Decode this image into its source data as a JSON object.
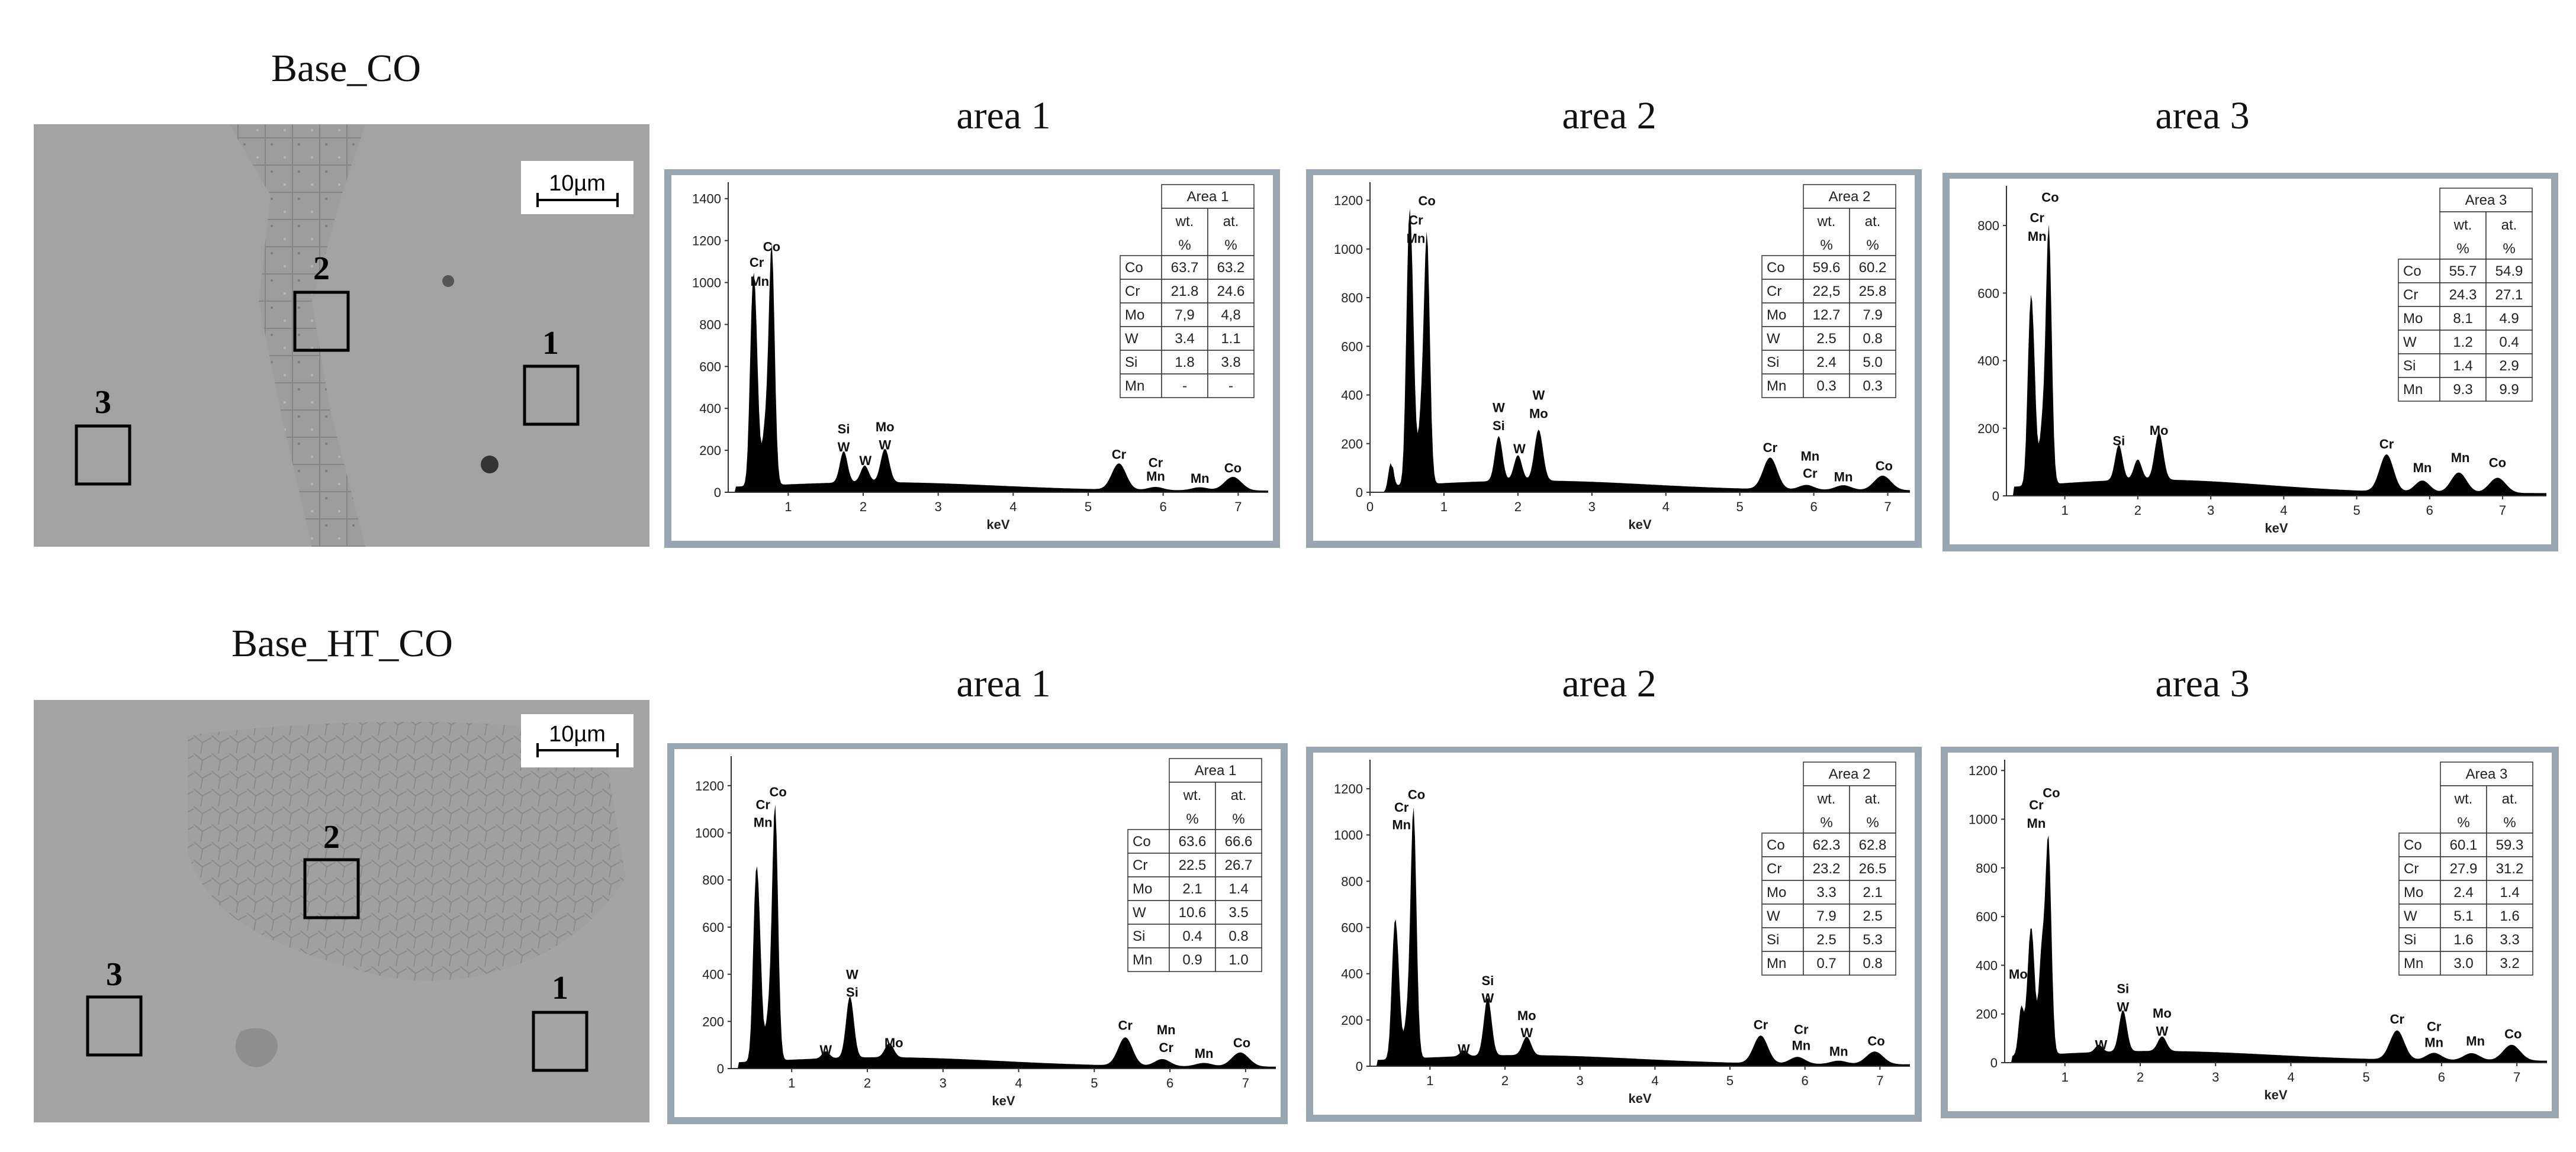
{
  "rows": [
    {
      "title": "Base_CO",
      "sem": {
        "scale_bar": "10µm",
        "markers": [
          "2",
          "1",
          "3"
        ]
      },
      "area_titles": [
        "area 1",
        "area 2",
        "area 3"
      ]
    },
    {
      "title": "Base_HT_CO",
      "sem": {
        "scale_bar": "10µm",
        "markers": [
          "2",
          "3",
          "1"
        ]
      },
      "area_titles": [
        "area 1",
        "area 2",
        "area 3"
      ]
    }
  ],
  "chart_data": [
    {
      "type": "area",
      "row": "Base_CO",
      "panel": "area 1",
      "xlabel": "keV",
      "xlim": [
        0.2,
        7.4
      ],
      "ylim": [
        0,
        1450
      ],
      "xticks": [
        "1",
        "2",
        "3",
        "4",
        "5",
        "6",
        "7"
      ],
      "yticks": [
        "0",
        "200",
        "400",
        "600",
        "800",
        "1000",
        "1200",
        "1400"
      ],
      "peaks": [
        {
          "e": 0.52,
          "c": 720
        },
        {
          "e": 0.57,
          "c": 560
        },
        {
          "e": 0.69,
          "c": 250
        },
        {
          "e": 0.78,
          "c": 1140
        },
        {
          "e": 1.74,
          "c": 150
        },
        {
          "e": 2.02,
          "c": 80
        },
        {
          "e": 2.29,
          "c": 160
        },
        {
          "e": 5.41,
          "c": 125
        },
        {
          "e": 5.9,
          "c": 15
        },
        {
          "e": 6.49,
          "c": 15
        },
        {
          "e": 6.93,
          "c": 65
        }
      ],
      "labels": [
        {
          "e": 0.78,
          "c": 1150,
          "t": "Co"
        },
        {
          "e": 0.58,
          "c": 1075,
          "t": "Cr"
        },
        {
          "e": 0.62,
          "c": 985,
          "t": "Mn"
        },
        {
          "e": 1.74,
          "c": 280,
          "t": "Si"
        },
        {
          "e": 1.74,
          "c": 195,
          "t": "W"
        },
        {
          "e": 2.03,
          "c": 130,
          "t": "W"
        },
        {
          "e": 2.29,
          "c": 290,
          "t": "Mo"
        },
        {
          "e": 2.29,
          "c": 205,
          "t": "W"
        },
        {
          "e": 5.41,
          "c": 160,
          "t": "Cr"
        },
        {
          "e": 5.9,
          "c": 120,
          "t": "Cr"
        },
        {
          "e": 5.9,
          "c": 55,
          "t": "Mn"
        },
        {
          "e": 6.49,
          "c": 45,
          "t": "Mn"
        },
        {
          "e": 6.93,
          "c": 95,
          "t": "Co"
        }
      ],
      "table": {
        "title": "Area 1",
        "col_headers": [
          [
            "wt.",
            "%"
          ],
          [
            "at.",
            "%"
          ]
        ],
        "rows": [
          {
            "element": "Co",
            "wt": "63.7",
            "at": "63.2"
          },
          {
            "element": "Cr",
            "wt": "21.8",
            "at": "24.6"
          },
          {
            "element": "Mo",
            "wt": "7,9",
            "at": "4,8"
          },
          {
            "element": "W",
            "wt": "3.4",
            "at": "1.1"
          },
          {
            "element": "Si",
            "wt": "1.8",
            "at": "3.8"
          },
          {
            "element": "Mn",
            "wt": "-",
            "at": "-"
          }
        ]
      }
    },
    {
      "type": "area",
      "row": "Base_CO",
      "panel": "area 2",
      "xlabel": "keV",
      "xlim": [
        0,
        7.3
      ],
      "ylim": [
        0,
        1250
      ],
      "xticks": [
        "0",
        "1",
        "2",
        "3",
        "4",
        "5",
        "6",
        "7"
      ],
      "yticks": [
        "0",
        "200",
        "400",
        "600",
        "800",
        "1000",
        "1200"
      ],
      "peaks": [
        {
          "e": 0.28,
          "c": 120
        },
        {
          "e": 0.52,
          "c": 820
        },
        {
          "e": 0.57,
          "c": 600
        },
        {
          "e": 0.69,
          "c": 250
        },
        {
          "e": 0.77,
          "c": 1010
        },
        {
          "e": 1.74,
          "c": 185
        },
        {
          "e": 2.0,
          "c": 105
        },
        {
          "e": 2.28,
          "c": 210
        },
        {
          "e": 5.41,
          "c": 130
        },
        {
          "e": 5.9,
          "c": 20
        },
        {
          "e": 6.4,
          "c": 20
        },
        {
          "e": 6.93,
          "c": 60
        }
      ],
      "labels": [
        {
          "e": 0.77,
          "c": 1180,
          "t": "Co"
        },
        {
          "e": 0.62,
          "c": 1100,
          "t": "Cr"
        },
        {
          "e": 0.62,
          "c": 1025,
          "t": "Mn"
        },
        {
          "e": 1.74,
          "c": 330,
          "t": "W"
        },
        {
          "e": 1.74,
          "c": 255,
          "t": "Si"
        },
        {
          "e": 2.02,
          "c": 160,
          "t": "W"
        },
        {
          "e": 2.28,
          "c": 380,
          "t": "W"
        },
        {
          "e": 2.28,
          "c": 305,
          "t": "Mo"
        },
        {
          "e": 5.41,
          "c": 165,
          "t": "Cr"
        },
        {
          "e": 5.95,
          "c": 130,
          "t": "Mn"
        },
        {
          "e": 5.95,
          "c": 60,
          "t": "Cr"
        },
        {
          "e": 6.4,
          "c": 45,
          "t": "Mn"
        },
        {
          "e": 6.95,
          "c": 90,
          "t": "Co"
        }
      ],
      "table": {
        "title": "Area 2",
        "col_headers": [
          [
            "wt.",
            "%"
          ],
          [
            "at.",
            "%"
          ]
        ],
        "rows": [
          {
            "element": "Co",
            "wt": "59.6",
            "at": "60.2"
          },
          {
            "element": "Cr",
            "wt": "22,5",
            "at": "25.8"
          },
          {
            "element": "Mo",
            "wt": "12.7",
            "at": "7.9"
          },
          {
            "element": "W",
            "wt": "2.5",
            "at": "0.8"
          },
          {
            "element": "Si",
            "wt": "2.4",
            "at": "5.0"
          },
          {
            "element": "Mn",
            "wt": "0.3",
            "at": "0.3"
          }
        ]
      }
    },
    {
      "type": "area",
      "row": "Base_CO",
      "panel": "area 3",
      "xlabel": "keV",
      "xlim": [
        0.2,
        7.6
      ],
      "ylim": [
        0,
        900
      ],
      "xticks": [
        "1",
        "2",
        "3",
        "4",
        "5",
        "6",
        "7"
      ],
      "yticks": [
        "0",
        "200",
        "400",
        "600",
        "800"
      ],
      "peaks": [
        {
          "e": 0.52,
          "c": 400
        },
        {
          "e": 0.57,
          "c": 310
        },
        {
          "e": 0.69,
          "c": 160
        },
        {
          "e": 0.78,
          "c": 760
        },
        {
          "e": 1.74,
          "c": 105
        },
        {
          "e": 2.0,
          "c": 60
        },
        {
          "e": 2.29,
          "c": 140
        },
        {
          "e": 5.41,
          "c": 110
        },
        {
          "e": 5.9,
          "c": 35
        },
        {
          "e": 6.4,
          "c": 60
        },
        {
          "e": 6.93,
          "c": 45
        }
      ],
      "labels": [
        {
          "e": 0.8,
          "c": 870,
          "t": "Co"
        },
        {
          "e": 0.62,
          "c": 810,
          "t": "Cr"
        },
        {
          "e": 0.62,
          "c": 755,
          "t": "Mn"
        },
        {
          "e": 1.74,
          "c": 150,
          "t": "Si"
        },
        {
          "e": 2.29,
          "c": 180,
          "t": "Mo"
        },
        {
          "e": 5.41,
          "c": 140,
          "t": "Cr"
        },
        {
          "e": 5.9,
          "c": 70,
          "t": "Mn"
        },
        {
          "e": 6.42,
          "c": 100,
          "t": "Mn"
        },
        {
          "e": 6.93,
          "c": 85,
          "t": "Co"
        }
      ],
      "table": {
        "title": "Area 3",
        "col_headers": [
          [
            "wt.",
            "%"
          ],
          [
            "at.",
            "%"
          ]
        ],
        "rows": [
          {
            "element": "Co",
            "wt": "55.7",
            "at": "54.9"
          },
          {
            "element": "Cr",
            "wt": "24.3",
            "at": "27.1"
          },
          {
            "element": "Mo",
            "wt": "8.1",
            "at": "4.9"
          },
          {
            "element": "W",
            "wt": "1.2",
            "at": "0.4"
          },
          {
            "element": "Si",
            "wt": "1.4",
            "at": "2.9"
          },
          {
            "element": "Mn",
            "wt": "9.3",
            "at": "9.9"
          }
        ]
      }
    },
    {
      "type": "area",
      "row": "Base_HT_CO",
      "panel": "area 1",
      "xlabel": "keV",
      "xlim": [
        0.2,
        7.4
      ],
      "ylim": [
        0,
        1300
      ],
      "xticks": [
        "1",
        "2",
        "3",
        "4",
        "5",
        "6",
        "7"
      ],
      "yticks": [
        "0",
        "200",
        "400",
        "600",
        "800",
        "1000",
        "1200"
      ],
      "peaks": [
        {
          "e": 0.52,
          "c": 600
        },
        {
          "e": 0.57,
          "c": 440
        },
        {
          "e": 0.69,
          "c": 170
        },
        {
          "e": 0.78,
          "c": 1080
        },
        {
          "e": 1.45,
          "c": 30
        },
        {
          "e": 1.77,
          "c": 260
        },
        {
          "e": 2.29,
          "c": 60
        },
        {
          "e": 5.41,
          "c": 120
        },
        {
          "e": 5.9,
          "c": 30
        },
        {
          "e": 6.45,
          "c": 15
        },
        {
          "e": 6.93,
          "c": 60
        }
      ],
      "labels": [
        {
          "e": 0.82,
          "c": 1155,
          "t": "Co"
        },
        {
          "e": 0.62,
          "c": 1100,
          "t": "Cr"
        },
        {
          "e": 0.62,
          "c": 1025,
          "t": "Mn"
        },
        {
          "e": 1.45,
          "c": 60,
          "t": "W"
        },
        {
          "e": 1.8,
          "c": 380,
          "t": "W"
        },
        {
          "e": 1.8,
          "c": 305,
          "t": "Si"
        },
        {
          "e": 2.35,
          "c": 90,
          "t": "Mo"
        },
        {
          "e": 5.41,
          "c": 165,
          "t": "Cr"
        },
        {
          "e": 5.95,
          "c": 145,
          "t": "Mn"
        },
        {
          "e": 5.95,
          "c": 70,
          "t": "Cr"
        },
        {
          "e": 6.45,
          "c": 45,
          "t": "Mn"
        },
        {
          "e": 6.95,
          "c": 90,
          "t": "Co"
        }
      ],
      "table": {
        "title": "Area 1",
        "col_headers": [
          [
            "wt.",
            "%"
          ],
          [
            "at.",
            "%"
          ]
        ],
        "rows": [
          {
            "element": "Co",
            "wt": "63.6",
            "at": "66.6"
          },
          {
            "element": "Cr",
            "wt": "22.5",
            "at": "26.7"
          },
          {
            "element": "Mo",
            "wt": "2.1",
            "at": "1.4"
          },
          {
            "element": "W",
            "wt": "10.6",
            "at": "3.5"
          },
          {
            "element": "Si",
            "wt": "0.4",
            "at": "0.8"
          },
          {
            "element": "Mn",
            "wt": "0.9",
            "at": "1.0"
          }
        ]
      }
    },
    {
      "type": "area",
      "row": "Base_HT_CO",
      "panel": "area 2",
      "xlabel": "keV",
      "xlim": [
        0.2,
        7.4
      ],
      "ylim": [
        0,
        1300
      ],
      "xticks": [
        "1",
        "2",
        "3",
        "4",
        "5",
        "6",
        "7"
      ],
      "yticks": [
        "0",
        "200",
        "400",
        "600",
        "800",
        "1000",
        "1200"
      ],
      "peaks": [
        {
          "e": 0.52,
          "c": 440
        },
        {
          "e": 0.57,
          "c": 320
        },
        {
          "e": 0.69,
          "c": 150
        },
        {
          "e": 0.78,
          "c": 1080
        },
        {
          "e": 1.45,
          "c": 25
        },
        {
          "e": 1.77,
          "c": 250
        },
        {
          "e": 2.29,
          "c": 80
        },
        {
          "e": 5.41,
          "c": 120
        },
        {
          "e": 5.9,
          "c": 30
        },
        {
          "e": 6.45,
          "c": 15
        },
        {
          "e": 6.93,
          "c": 55
        }
      ],
      "labels": [
        {
          "e": 0.82,
          "c": 1155,
          "t": "Co"
        },
        {
          "e": 0.62,
          "c": 1100,
          "t": "Cr"
        },
        {
          "e": 0.62,
          "c": 1025,
          "t": "Mn"
        },
        {
          "e": 1.45,
          "c": 55,
          "t": "W"
        },
        {
          "e": 1.77,
          "c": 350,
          "t": "Si"
        },
        {
          "e": 1.77,
          "c": 275,
          "t": "W"
        },
        {
          "e": 2.29,
          "c": 200,
          "t": "Mo"
        },
        {
          "e": 2.29,
          "c": 125,
          "t": "W"
        },
        {
          "e": 5.41,
          "c": 160,
          "t": "Cr"
        },
        {
          "e": 5.95,
          "c": 140,
          "t": "Cr"
        },
        {
          "e": 5.95,
          "c": 70,
          "t": "Mn"
        },
        {
          "e": 6.45,
          "c": 45,
          "t": "Mn"
        },
        {
          "e": 6.95,
          "c": 90,
          "t": "Co"
        }
      ],
      "table": {
        "title": "Area 2",
        "col_headers": [
          [
            "wt.",
            "%"
          ],
          [
            "at.",
            "%"
          ]
        ],
        "rows": [
          {
            "element": "Co",
            "wt": "62.3",
            "at": "62.8"
          },
          {
            "element": "Cr",
            "wt": "23.2",
            "at": "26.5"
          },
          {
            "element": "Mo",
            "wt": "3.3",
            "at": "2.1"
          },
          {
            "element": "W",
            "wt": "7.9",
            "at": "2.5"
          },
          {
            "element": "Si",
            "wt": "2.5",
            "at": "5.3"
          },
          {
            "element": "Mn",
            "wt": "0.7",
            "at": "0.8"
          }
        ]
      }
    },
    {
      "type": "area",
      "row": "Base_HT_CO",
      "panel": "area 3",
      "xlabel": "keV",
      "xlim": [
        0.2,
        7.4
      ],
      "ylim": [
        0,
        1220
      ],
      "xticks": [
        "1",
        "2",
        "3",
        "4",
        "5",
        "6",
        "7"
      ],
      "yticks": [
        "0",
        "200",
        "400",
        "600",
        "800",
        "1000",
        "1200"
      ],
      "peaks": [
        {
          "e": 0.42,
          "c": 200
        },
        {
          "e": 0.52,
          "c": 280
        },
        {
          "e": 0.57,
          "c": 380
        },
        {
          "e": 0.69,
          "c": 400
        },
        {
          "e": 0.78,
          "c": 880
        },
        {
          "e": 1.45,
          "c": 30
        },
        {
          "e": 1.77,
          "c": 170
        },
        {
          "e": 2.29,
          "c": 60
        },
        {
          "e": 5.41,
          "c": 120
        },
        {
          "e": 5.9,
          "c": 30
        },
        {
          "e": 6.4,
          "c": 30
        },
        {
          "e": 6.93,
          "c": 65
        }
      ],
      "labels": [
        {
          "e": 0.82,
          "c": 1090,
          "t": "Co"
        },
        {
          "e": 0.62,
          "c": 1040,
          "t": "Cr"
        },
        {
          "e": 0.62,
          "c": 965,
          "t": "Mn"
        },
        {
          "e": 0.38,
          "c": 345,
          "t": "Mo"
        },
        {
          "e": 1.48,
          "c": 55,
          "t": "W"
        },
        {
          "e": 1.77,
          "c": 285,
          "t": "Si"
        },
        {
          "e": 1.77,
          "c": 210,
          "t": "W"
        },
        {
          "e": 2.29,
          "c": 185,
          "t": "Mo"
        },
        {
          "e": 2.29,
          "c": 110,
          "t": "W"
        },
        {
          "e": 5.41,
          "c": 160,
          "t": "Cr"
        },
        {
          "e": 5.9,
          "c": 130,
          "t": "Cr"
        },
        {
          "e": 5.9,
          "c": 65,
          "t": "Mn"
        },
        {
          "e": 6.45,
          "c": 70,
          "t": "Mn"
        },
        {
          "e": 6.95,
          "c": 100,
          "t": "Co"
        }
      ],
      "table": {
        "title": "Area 3",
        "col_headers": [
          [
            "wt.",
            "%"
          ],
          [
            "at.",
            "%"
          ]
        ],
        "rows": [
          {
            "element": "Co",
            "wt": "60.1",
            "at": "59.3"
          },
          {
            "element": "Cr",
            "wt": "27.9",
            "at": "31.2"
          },
          {
            "element": "Mo",
            "wt": "2.4",
            "at": "1.4"
          },
          {
            "element": "W",
            "wt": "5.1",
            "at": "1.6"
          },
          {
            "element": "Si",
            "wt": "1.6",
            "at": "3.3"
          },
          {
            "element": "Mn",
            "wt": "3.0",
            "at": "3.2"
          }
        ]
      }
    }
  ]
}
